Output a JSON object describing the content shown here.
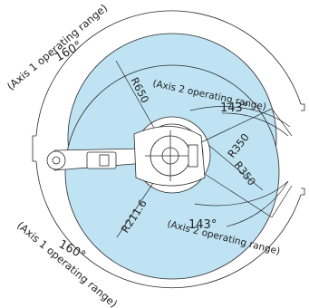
{
  "colors": {
    "reach_fill": "#bfe3f3",
    "line": "#2b2b2b",
    "arm_fill": "#ffffff"
  },
  "labels": {
    "axis1_range_top": "(Axis 1 operating range)",
    "axis1_angle_top": "160°",
    "axis1_range_bottom": "(Axis 1 operating range)",
    "axis1_angle_bottom": "160°",
    "axis2_range_top": "(Axis 2 operating range)",
    "axis2_angle_top": "143°",
    "axis2_range_bottom": "(Axis 2 operating range)",
    "axis2_angle_bottom": "143°",
    "radius_outer": "R650",
    "radius_inner": "R211.6",
    "radius_a": "R350",
    "radius_b": "R350"
  }
}
